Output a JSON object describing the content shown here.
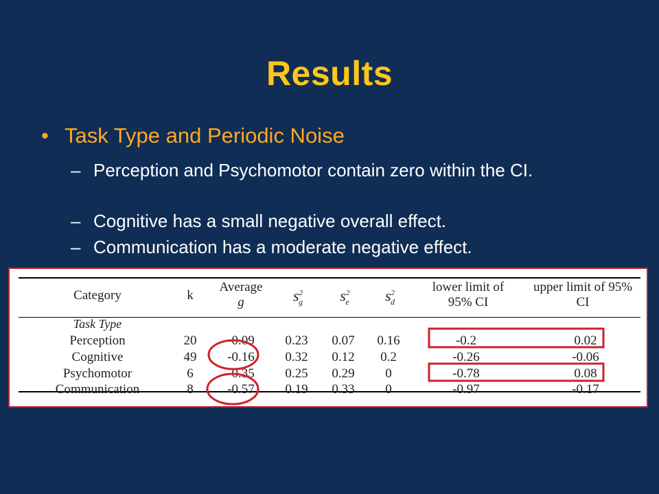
{
  "slide": {
    "title": "Results",
    "bullet": "Task Type and Periodic Noise",
    "bullet_marker": "•",
    "sub_marker": "–",
    "subpoints": [
      "Perception and Psychomotor contain zero within the CI.",
      "Cognitive has a small negative overall effect.",
      "Communication has a moderate negative effect."
    ]
  },
  "table": {
    "headers": {
      "category": "Category",
      "k": "k",
      "avg_line1": "Average",
      "avg_line2": "g",
      "sg": "s",
      "sg_sup": "2",
      "sg_sub": "g",
      "se": "s",
      "se_sup": "2",
      "se_sub": "e",
      "sd": "s",
      "sd_sup": "2",
      "sd_sub": "d",
      "lower_line1": "lower limit of",
      "lower_line2": "95% CI",
      "upper_line1": "upper limit of 95%",
      "upper_line2": "CI"
    },
    "section_label": "Task Type",
    "rows": [
      {
        "category": "Perception",
        "k": "20",
        "g": "-0.09",
        "sg": "0.23",
        "se": "0.07",
        "sd": "0.16",
        "lower": "-0.2",
        "upper": "0.02"
      },
      {
        "category": "Cognitive",
        "k": "49",
        "g": "-0.16",
        "sg": "0.32",
        "se": "0.12",
        "sd": "0.2",
        "lower": "-0.26",
        "upper": "-0.06"
      },
      {
        "category": "Psychomotor",
        "k": "6",
        "g": "-0.35",
        "sg": "0.25",
        "se": "0.29",
        "sd": "0",
        "lower": "-0.78",
        "upper": "0.08"
      },
      {
        "category": "Communication",
        "k": "8",
        "g": "-0.57",
        "sg": "0.19",
        "se": "0.33",
        "sd": "0",
        "lower": "-0.97",
        "upper": "-0.17"
      }
    ]
  },
  "colors": {
    "background": "#0f2d55",
    "title": "#ffc71a",
    "bullet": "#ffa824",
    "highlight": "#d0202a"
  }
}
